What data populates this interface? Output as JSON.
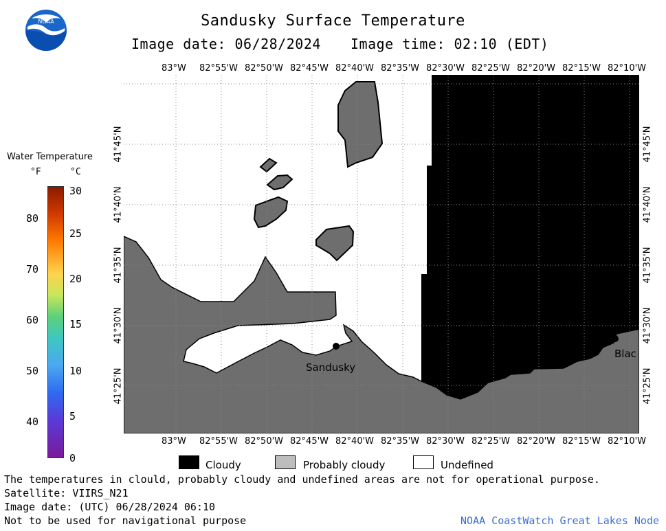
{
  "header": {
    "title": "Sandusky Surface Temperature",
    "image_date": "Image date: 06/28/2024",
    "image_time": "Image time: 02:10 (EDT)"
  },
  "logo": {
    "text": "NOAA"
  },
  "colorbar": {
    "title": "Water Temperature",
    "unit_f": "°F",
    "unit_c": "°C",
    "f_ticks": [
      "80",
      "70",
      "60",
      "50",
      "40"
    ],
    "c_ticks": [
      "30",
      "25",
      "20",
      "15",
      "10",
      "5",
      "0"
    ]
  },
  "map": {
    "lon_labels": [
      "83°W",
      "82°55'W",
      "82°50'W",
      "82°45'W",
      "82°40'W",
      "82°35'W",
      "82°30'W",
      "82°25'W",
      "82°20'W",
      "82°15'W",
      "82°10'W"
    ],
    "lat_labels": [
      "41°45'N",
      "41°40'N",
      "41°35'N",
      "41°30'N",
      "41°25'N"
    ],
    "places": {
      "sandusky": "Sandusky",
      "blac": "Blac"
    }
  },
  "legend": {
    "cloudy": "Cloudy",
    "probably_cloudy": "Probably cloudy",
    "undefined": "Undefined"
  },
  "footer": {
    "disclaimer": "The temperatures in clould, probably cloudy and undefined areas are not for operational purpose.",
    "satellite": "Satellite: VIIRS_N21",
    "image_date_utc": "Image date: (UTC) 06/28/2024  06:10",
    "nav_warning": "Not to be used for navigational purpose",
    "credit": "NOAA CoastWatch Great Lakes Node"
  },
  "colors": {
    "land": "#6e6e6e",
    "cloud": "#000000",
    "probably_cloudy": "#bdbdbd",
    "undefined": "#ffffff"
  }
}
